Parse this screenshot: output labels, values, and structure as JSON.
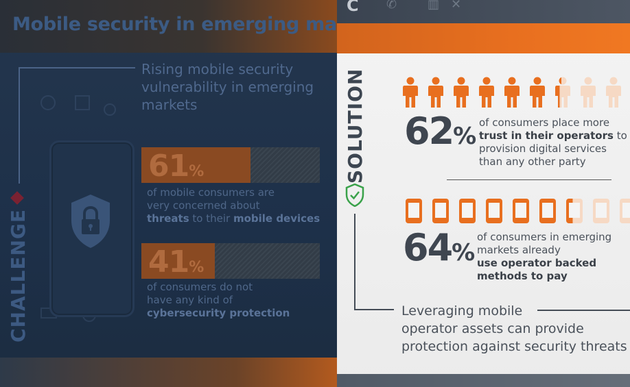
{
  "left_panel": {
    "title": "Mobile security in emerging markets",
    "section_label": "CHALLENGE",
    "headline": "Rising mobile security vulnerability in emerging markets",
    "stats": [
      {
        "percent": "61",
        "unit": "%",
        "fill_fraction": 0.61,
        "line1": "of mobile consumers are",
        "line2": "very concerned about",
        "line3_bold_a": "threats",
        "line3_mid": " to their ",
        "line3_bold_b": "mobile devices"
      },
      {
        "percent": "41",
        "unit": "%",
        "fill_fraction": 0.41,
        "line1": "of consumers do not",
        "line2": "have any kind of",
        "line3_bold_a": "cybersecurity protection"
      }
    ]
  },
  "right_panel": {
    "section_label": "SOLUTION",
    "stat_trust": {
      "percent": "62",
      "unit": "%",
      "line1": "of consumers place more",
      "line2_bold": "trust in their operators",
      "line2_rest": " to",
      "line3": "provision digital services",
      "line4": "than any other party",
      "icon": "person-icon",
      "filled_icons": 6.3,
      "total_icons": 9
    },
    "stat_pay": {
      "percent": "64",
      "unit": "%",
      "line1": "of consumers in emerging",
      "line2": "markets already",
      "line3_bold": "use operator backed",
      "line4_bold": "methods to pay",
      "icon": "phone-icon",
      "filled_icons": 6.4,
      "total_icons": 9
    },
    "conclusion": {
      "line1": "Leveraging mobile",
      "line2": "operator assets can provide",
      "line3": "protection against security threats"
    }
  },
  "colors": {
    "accent_orange": "#e86f1f",
    "left_background": "#1d3049",
    "right_background": "#f0f0f0"
  }
}
